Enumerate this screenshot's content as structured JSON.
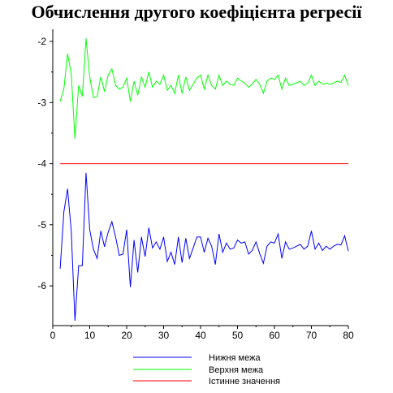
{
  "chart_data": {
    "type": "line",
    "title": "Обчислення другого коефіцієнта регресії",
    "xlabel": "",
    "ylabel": "",
    "xlim": [
      0,
      80
    ],
    "ylim": [
      -6.65,
      -1.8
    ],
    "x_ticks": [
      0,
      10,
      20,
      30,
      40,
      50,
      60,
      70,
      80
    ],
    "y_ticks": [
      -6,
      -5,
      -4,
      -3,
      -2
    ],
    "grid": false,
    "legend_position": "bottom-center",
    "x": [
      2,
      3,
      4,
      5,
      6,
      7,
      8,
      9,
      10,
      11,
      12,
      13,
      14,
      15,
      16,
      17,
      18,
      19,
      20,
      21,
      22,
      23,
      24,
      25,
      26,
      27,
      28,
      29,
      30,
      31,
      32,
      33,
      34,
      35,
      36,
      37,
      38,
      39,
      40,
      41,
      42,
      43,
      44,
      45,
      46,
      47,
      48,
      49,
      50,
      51,
      52,
      53,
      54,
      55,
      56,
      57,
      58,
      59,
      60,
      61,
      62,
      63,
      64,
      65,
      66,
      67,
      68,
      69,
      70,
      71,
      72,
      73,
      74,
      75,
      76,
      77,
      78,
      79,
      80
    ],
    "series": [
      {
        "name": "Нижня межа",
        "color": "#0000ff",
        "values": [
          -5.72,
          -4.79,
          -4.41,
          -5.1,
          -6.57,
          -5.67,
          -5.67,
          -4.15,
          -5.08,
          -5.4,
          -5.55,
          -5.1,
          -5.36,
          -5.12,
          -4.95,
          -5.2,
          -5.5,
          -5.48,
          -5.08,
          -6.02,
          -5.25,
          -5.78,
          -5.2,
          -5.52,
          -5.05,
          -5.38,
          -5.28,
          -5.4,
          -5.2,
          -5.6,
          -5.45,
          -5.65,
          -5.2,
          -5.62,
          -5.22,
          -5.55,
          -5.38,
          -5.2,
          -5.2,
          -5.45,
          -5.22,
          -5.35,
          -5.65,
          -5.15,
          -5.45,
          -5.3,
          -5.4,
          -5.38,
          -5.25,
          -5.3,
          -5.28,
          -5.48,
          -5.42,
          -5.28,
          -5.47,
          -5.63,
          -5.35,
          -5.28,
          -5.3,
          -5.15,
          -5.55,
          -5.28,
          -5.4,
          -5.38,
          -5.35,
          -5.32,
          -5.4,
          -5.35,
          -5.1,
          -5.4,
          -5.3,
          -5.42,
          -5.35,
          -5.4,
          -5.35,
          -5.32,
          -5.33,
          -5.18,
          -5.43
        ]
      },
      {
        "name": "Верхня межа",
        "color": "#00ff00",
        "values": [
          -2.98,
          -2.78,
          -2.2,
          -2.53,
          -3.59,
          -2.72,
          -2.9,
          -1.95,
          -2.58,
          -2.92,
          -2.9,
          -2.58,
          -2.82,
          -2.55,
          -2.45,
          -2.72,
          -2.78,
          -2.75,
          -2.6,
          -2.98,
          -2.65,
          -2.88,
          -2.58,
          -2.75,
          -2.5,
          -2.75,
          -2.65,
          -2.7,
          -2.55,
          -2.8,
          -2.72,
          -2.85,
          -2.55,
          -2.85,
          -2.58,
          -2.8,
          -2.7,
          -2.6,
          -2.55,
          -2.78,
          -2.55,
          -2.72,
          -2.78,
          -2.55,
          -2.72,
          -2.65,
          -2.7,
          -2.72,
          -2.6,
          -2.65,
          -2.68,
          -2.75,
          -2.7,
          -2.62,
          -2.7,
          -2.85,
          -2.65,
          -2.6,
          -2.62,
          -2.55,
          -2.78,
          -2.6,
          -2.72,
          -2.7,
          -2.68,
          -2.65,
          -2.72,
          -2.68,
          -2.55,
          -2.72,
          -2.65,
          -2.7,
          -2.68,
          -2.7,
          -2.68,
          -2.65,
          -2.67,
          -2.55,
          -2.72
        ]
      },
      {
        "name": "Істинне значення",
        "color": "#ff0000",
        "values": [
          -4,
          -4,
          -4,
          -4,
          -4,
          -4,
          -4,
          -4,
          -4,
          -4,
          -4,
          -4,
          -4,
          -4,
          -4,
          -4,
          -4,
          -4,
          -4,
          -4,
          -4,
          -4,
          -4,
          -4,
          -4,
          -4,
          -4,
          -4,
          -4,
          -4,
          -4,
          -4,
          -4,
          -4,
          -4,
          -4,
          -4,
          -4,
          -4,
          -4,
          -4,
          -4,
          -4,
          -4,
          -4,
          -4,
          -4,
          -4,
          -4,
          -4,
          -4,
          -4,
          -4,
          -4,
          -4,
          -4,
          -4,
          -4,
          -4,
          -4,
          -4,
          -4,
          -4,
          -4,
          -4,
          -4,
          -4,
          -4,
          -4,
          -4,
          -4,
          -4,
          -4,
          -4,
          -4,
          -4,
          -4,
          -4,
          -4
        ]
      }
    ]
  }
}
